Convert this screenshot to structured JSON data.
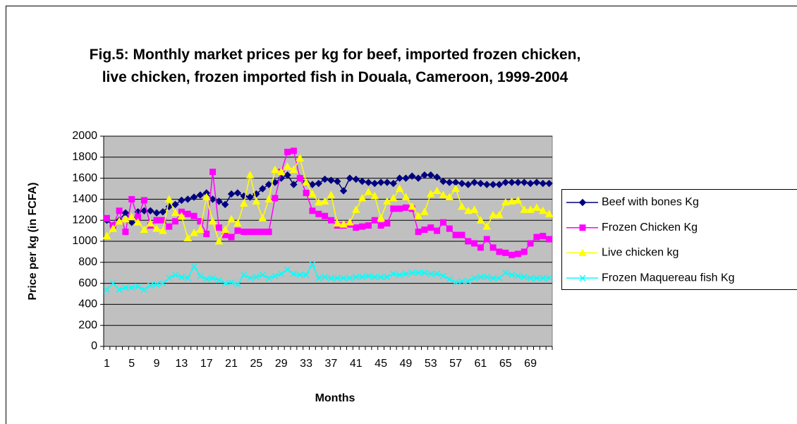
{
  "chart_data": {
    "type": "line",
    "title": "Fig.5:  Monthly market prices per kg for  beef, imported frozen chicken, live chicken, frozen imported fish in Douala, Cameroon, 1999-2004",
    "x_label": "Months",
    "y_label": "Price per kg (in FCFA)",
    "categories": [
      1,
      null,
      null,
      null,
      5,
      null,
      null,
      null,
      9,
      null,
      null,
      null,
      13,
      null,
      null,
      null,
      17,
      null,
      null,
      null,
      21,
      null,
      null,
      null,
      25,
      null,
      null,
      null,
      29,
      null,
      null,
      null,
      33,
      null,
      null,
      null,
      37,
      null,
      null,
      null,
      41,
      null,
      null,
      null,
      45,
      null,
      null,
      null,
      49,
      null,
      null,
      null,
      53,
      null,
      null,
      null,
      57,
      null,
      null,
      null,
      61,
      null,
      null,
      null,
      65,
      null,
      null,
      null,
      69,
      null,
      null,
      null
    ],
    "ylim": [
      0,
      2000
    ],
    "yticks": [
      0,
      200,
      400,
      600,
      800,
      1000,
      1200,
      1400,
      1600,
      1800,
      2000
    ],
    "grid": true,
    "legend": "right",
    "series": [
      {
        "name": "Beef with bones Kg",
        "color": "#000080",
        "marker": "diamond",
        "values": [
          1200,
          1150,
          1200,
          1270,
          1180,
          1280,
          1290,
          1290,
          1270,
          1280,
          1330,
          1350,
          1390,
          1400,
          1420,
          1440,
          1460,
          1400,
          1380,
          1350,
          1450,
          1460,
          1430,
          1420,
          1450,
          1500,
          1540,
          1560,
          1600,
          1630,
          1540,
          1600,
          1560,
          1540,
          1550,
          1590,
          1580,
          1570,
          1480,
          1600,
          1590,
          1570,
          1560,
          1550,
          1560,
          1560,
          1550,
          1600,
          1600,
          1620,
          1600,
          1630,
          1630,
          1610,
          1570,
          1560,
          1560,
          1550,
          1540,
          1560,
          1550,
          1540,
          1540,
          1540,
          1560,
          1560,
          1560,
          1560,
          1550,
          1560,
          1550,
          1550
        ]
      },
      {
        "name": "Frozen Chicken Kg",
        "color": "#ff00ff",
        "marker": "square",
        "values": [
          1220,
          1150,
          1290,
          1090,
          1400,
          1230,
          1390,
          1150,
          1200,
          1200,
          1140,
          1190,
          1280,
          1260,
          1240,
          1190,
          1070,
          1660,
          1130,
          1060,
          1040,
          1100,
          1090,
          1090,
          1090,
          1090,
          1090,
          1410,
          1660,
          1850,
          1860,
          1600,
          1460,
          1290,
          1260,
          1240,
          1200,
          1150,
          1150,
          1160,
          1130,
          1140,
          1150,
          1200,
          1150,
          1170,
          1310,
          1310,
          1320,
          1310,
          1090,
          1110,
          1130,
          1100,
          1180,
          1120,
          1060,
          1060,
          1000,
          980,
          940,
          1020,
          940,
          900,
          890,
          870,
          880,
          900,
          980,
          1040,
          1050,
          1020
        ]
      },
      {
        "name": "Live chicken kg",
        "color": "#ffff00",
        "marker": "triangle",
        "values": [
          1050,
          1120,
          1190,
          1210,
          1230,
          1180,
          1110,
          1170,
          1120,
          1100,
          1400,
          1270,
          1240,
          1030,
          1080,
          1110,
          1420,
          1190,
          1000,
          1110,
          1210,
          1170,
          1360,
          1630,
          1380,
          1220,
          1400,
          1680,
          1660,
          1710,
          1680,
          1790,
          1560,
          1450,
          1370,
          1380,
          1440,
          1170,
          1160,
          1180,
          1300,
          1410,
          1470,
          1430,
          1220,
          1380,
          1410,
          1500,
          1420,
          1330,
          1240,
          1280,
          1450,
          1480,
          1440,
          1420,
          1500,
          1330,
          1290,
          1300,
          1200,
          1140,
          1250,
          1250,
          1370,
          1380,
          1390,
          1300,
          1300,
          1320,
          1290,
          1260
        ]
      },
      {
        "name": "Frozen Maquereau fish Kg",
        "color": "#00ffff",
        "marker": "x",
        "values": [
          540,
          600,
          540,
          560,
          560,
          570,
          540,
          580,
          590,
          600,
          650,
          680,
          660,
          650,
          760,
          670,
          640,
          650,
          630,
          600,
          610,
          590,
          680,
          650,
          660,
          680,
          650,
          670,
          690,
          730,
          690,
          680,
          680,
          780,
          650,
          660,
          650,
          650,
          650,
          650,
          660,
          660,
          670,
          660,
          660,
          660,
          690,
          680,
          690,
          700,
          700,
          700,
          690,
          690,
          670,
          640,
          610,
          620,
          620,
          650,
          660,
          660,
          650,
          650,
          700,
          680,
          670,
          660,
          650,
          650,
          650,
          650
        ]
      }
    ]
  }
}
